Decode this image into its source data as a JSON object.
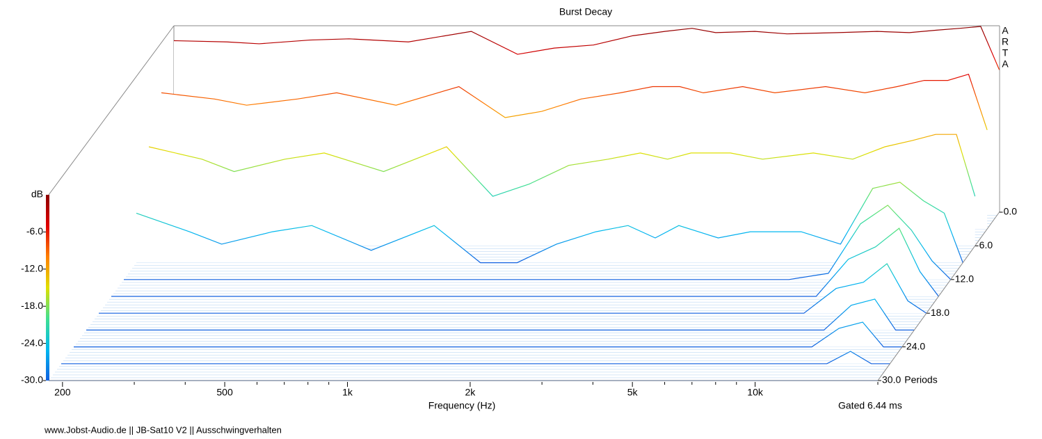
{
  "chart_data": {
    "type": "waterfall",
    "title": "Burst Decay",
    "brand": [
      "A",
      "R",
      "T",
      "A"
    ],
    "xlabel": "Frequency (Hz)",
    "ylabel": "dB",
    "zlabel": "Periods",
    "note": "Gated 6.44 ms",
    "footer": "www.Jobst-Audio.de  ||  JB-Sat10 V2  ||  Ausschwingverhalten",
    "log_x": true,
    "xlim": [
      185,
      20000
    ],
    "ylim": [
      -30,
      0
    ],
    "zlim": [
      0,
      30
    ],
    "xticks": [
      200,
      500,
      {
        "value": 1000,
        "label": "1k"
      },
      {
        "value": 2000,
        "label": "2k"
      },
      {
        "value": 5000,
        "label": "5k"
      },
      {
        "value": 10000,
        "label": "10k"
      }
    ],
    "xminorticks": [
      300,
      400,
      600,
      700,
      800,
      900,
      3000,
      4000,
      6000,
      7000,
      8000,
      9000,
      20000
    ],
    "yticks": [
      {
        "value": -30,
        "label": "-30.0"
      },
      {
        "value": -24,
        "label": "-24.0"
      },
      {
        "value": -18,
        "label": "-18.0"
      },
      {
        "value": -12,
        "label": "-12.0"
      },
      {
        "value": -6,
        "label": "-6.0"
      }
    ],
    "zticks": [
      {
        "value": 0,
        "label": "0.0"
      },
      {
        "value": 6,
        "label": "6.0"
      },
      {
        "value": 12,
        "label": "12.0"
      },
      {
        "value": 18,
        "label": "18.0"
      },
      {
        "value": 24,
        "label": "24.0"
      },
      {
        "value": 30,
        "label": "30.0"
      }
    ],
    "colormap": [
      "#1060e0",
      "#00b8f0",
      "#40e090",
      "#e0e000",
      "#ff8000",
      "#e00000",
      "#8c0000"
    ],
    "x": [
      185,
      250,
      300,
      400,
      500,
      700,
      1000,
      1300,
      1600,
      2000,
      2500,
      3000,
      3500,
      4000,
      5000,
      6000,
      8000,
      10000,
      12000,
      14000,
      16000,
      18000,
      20000
    ],
    "slices": [
      {
        "z": 0,
        "values": [
          -2.3,
          -2.5,
          -2.8,
          -2.2,
          -2.0,
          -2.5,
          -0.8,
          -4.5,
          -3.5,
          -3.0,
          -1.5,
          -0.8,
          -0.3,
          -1.0,
          -0.8,
          -1.2,
          -1.0,
          -0.8,
          -1.0,
          -0.6,
          -0.3,
          0.0,
          -7.0
        ]
      },
      {
        "z": 3,
        "values": [
          -8,
          -9,
          -10,
          -9,
          -8,
          -10,
          -7,
          -12,
          -11,
          -9,
          -8,
          -7,
          -7,
          -8,
          -7,
          -8,
          -7,
          -8,
          -7,
          -6,
          -6,
          -5,
          -14
        ]
      },
      {
        "z": 6,
        "values": [
          -14,
          -16,
          -18,
          -16,
          -15,
          -18,
          -14,
          -22,
          -20,
          -17,
          -16,
          -15,
          -16,
          -15,
          -15,
          -16,
          -15,
          -16,
          -14,
          -13,
          -12,
          -12,
          -22
        ]
      },
      {
        "z": 9,
        "values": [
          -22,
          -25,
          -27,
          -25,
          -24,
          -28,
          -24,
          -30,
          -30,
          -27,
          -25,
          -24,
          -26,
          -24,
          -26,
          -25,
          -25,
          -27,
          -18,
          -17,
          -20,
          -22,
          -30
        ]
      },
      {
        "z": 12,
        "values": [
          -30,
          -30,
          -30,
          -30,
          -30,
          -30,
          -30,
          -30,
          -30,
          -30,
          -30,
          -30,
          -30,
          -30,
          -30,
          -30,
          -30,
          -29,
          -21,
          -18,
          -22,
          -27,
          -30
        ]
      },
      {
        "z": 15,
        "values": [
          -30,
          -30,
          -30,
          -30,
          -30,
          -30,
          -30,
          -30,
          -30,
          -30,
          -30,
          -30,
          -30,
          -30,
          -30,
          -30,
          -30,
          -30,
          -24,
          -22,
          -19,
          -26,
          -30
        ]
      },
      {
        "z": 18,
        "values": [
          -30,
          -30,
          -30,
          -30,
          -30,
          -30,
          -30,
          -30,
          -30,
          -30,
          -30,
          -30,
          -30,
          -30,
          -30,
          -30,
          -30,
          -30,
          -26,
          -25,
          -22,
          -28,
          -30
        ]
      },
      {
        "z": 21,
        "values": [
          -30,
          -30,
          -30,
          -30,
          -30,
          -30,
          -30,
          -30,
          -30,
          -30,
          -30,
          -30,
          -30,
          -30,
          -30,
          -30,
          -30,
          -30,
          -30,
          -26,
          -25,
          -30,
          -30
        ]
      },
      {
        "z": 24,
        "values": [
          -30,
          -30,
          -30,
          -30,
          -30,
          -30,
          -30,
          -30,
          -30,
          -30,
          -30,
          -30,
          -30,
          -30,
          -30,
          -30,
          -30,
          -30,
          -30,
          -27,
          -26,
          -30,
          -30
        ]
      },
      {
        "z": 27,
        "values": [
          -30,
          -30,
          -30,
          -30,
          -30,
          -30,
          -30,
          -30,
          -30,
          -30,
          -30,
          -30,
          -30,
          -30,
          -30,
          -30,
          -30,
          -30,
          -30,
          -30,
          -28,
          -30,
          -30
        ]
      },
      {
        "z": 30,
        "values": [
          -30,
          -30,
          -30,
          -30,
          -30,
          -30,
          -30,
          -30,
          -30,
          -30,
          -30,
          -30,
          -30,
          -30,
          -30,
          -30,
          -30,
          -30,
          -30,
          -30,
          -30,
          -30,
          -30
        ]
      }
    ]
  }
}
